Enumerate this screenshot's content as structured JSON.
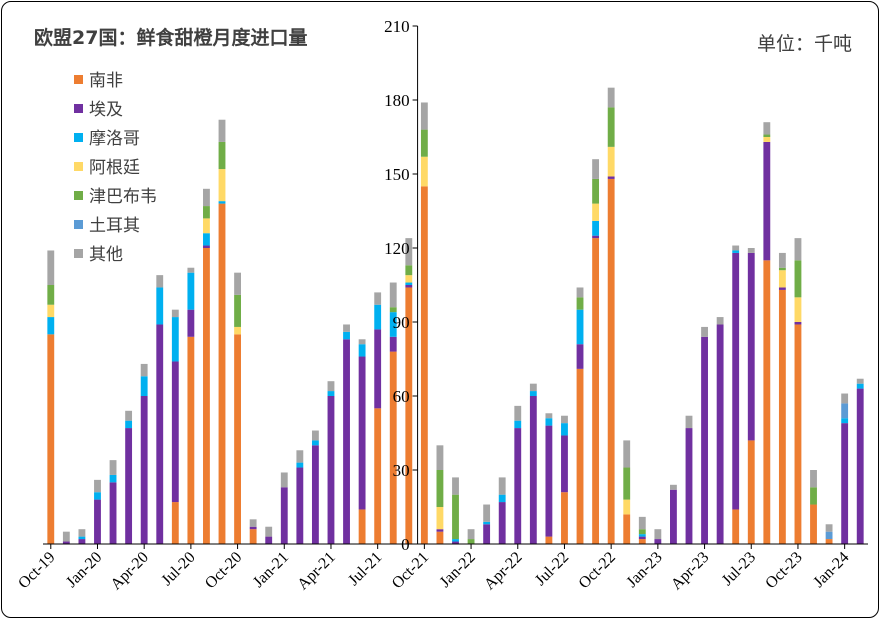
{
  "chart_data": {
    "type": "bar",
    "stacked": true,
    "title": "欧盟27国：鲜食甜橙月度进口量",
    "unit_label": "单位：千吨",
    "y_ticks": [
      0,
      30,
      60,
      90,
      120,
      150,
      180,
      210
    ],
    "ylim": [
      0,
      210
    ],
    "grid": false,
    "legend_position": "top-left",
    "x_tick_labels": [
      "Oct-19",
      "Jan-20",
      "Apr-20",
      "Jul-20",
      "Oct-20",
      "Jan-21",
      "Apr-21",
      "Jul-21",
      "Oct-21",
      "Jan-22",
      "Apr-22",
      "Jul-22",
      "Oct-22",
      "Jan-23",
      "Apr-23",
      "Jul-23",
      "Oct-23",
      "Jan-24"
    ],
    "categories": [
      "Oct-19",
      "Nov-19",
      "Dec-19",
      "Jan-20",
      "Feb-20",
      "Mar-20",
      "Apr-20",
      "May-20",
      "Jun-20",
      "Jul-20",
      "Aug-20",
      "Sep-20",
      "Oct-20",
      "Nov-20",
      "Dec-20",
      "Jan-21",
      "Feb-21",
      "Mar-21",
      "Apr-21",
      "May-21",
      "Jun-21",
      "Jul-21",
      "Aug-21",
      "Sep-21",
      "Oct-21",
      "Nov-21",
      "Dec-21",
      "Jan-22",
      "Feb-22",
      "Mar-22",
      "Apr-22",
      "May-22",
      "Jun-22",
      "Jul-22",
      "Aug-22",
      "Sep-22",
      "Oct-22",
      "Nov-22",
      "Dec-22",
      "Jan-23",
      "Feb-23",
      "Mar-23",
      "Apr-23",
      "May-23",
      "Jun-23",
      "Jul-23",
      "Aug-23",
      "Sep-23",
      "Oct-23",
      "Nov-23",
      "Dec-23",
      "Jan-24",
      "Feb-24"
    ],
    "series": [
      {
        "name": "南非",
        "color": "#ED7D31",
        "values": [
          85,
          0,
          0,
          0,
          0,
          0,
          0,
          0,
          17,
          84,
          120,
          138,
          85,
          6,
          0,
          0,
          0,
          0,
          0,
          0,
          14,
          55,
          78,
          104,
          145,
          5,
          0,
          0,
          0,
          0,
          0,
          0,
          3,
          21,
          71,
          124,
          148,
          12,
          2,
          0,
          0,
          0,
          0,
          0,
          14,
          42,
          115,
          103,
          89,
          16,
          2,
          0,
          0
        ]
      },
      {
        "name": "埃及",
        "color": "#7030A0",
        "values": [
          0,
          1,
          2,
          18,
          25,
          47,
          60,
          89,
          57,
          11,
          1,
          0,
          0,
          1,
          3,
          23,
          31,
          40,
          60,
          83,
          62,
          32,
          6,
          1,
          0,
          1,
          1,
          0,
          8,
          17,
          47,
          60,
          45,
          23,
          10,
          1,
          1,
          0,
          1,
          2,
          22,
          47,
          84,
          89,
          104,
          76,
          48,
          1,
          1,
          0,
          0,
          49,
          63
        ]
      },
      {
        "name": "摩洛哥",
        "color": "#00B0F0",
        "values": [
          7,
          0,
          1,
          3,
          3,
          3,
          8,
          15,
          18,
          15,
          5,
          1,
          0,
          0,
          0,
          0,
          2,
          2,
          2,
          3,
          5,
          10,
          10,
          1,
          0,
          0,
          1,
          0,
          1,
          3,
          3,
          2,
          3,
          5,
          14,
          6,
          0,
          0,
          1,
          0,
          0,
          0,
          0,
          0,
          1,
          0,
          0,
          0,
          0,
          0,
          0,
          2,
          2
        ]
      },
      {
        "name": "阿根廷",
        "color": "#FFD966",
        "values": [
          5,
          0,
          0,
          0,
          0,
          0,
          0,
          0,
          0,
          0,
          6,
          13,
          3,
          0,
          0,
          0,
          0,
          0,
          0,
          0,
          0,
          0,
          0,
          3,
          12,
          9,
          0,
          0,
          0,
          0,
          0,
          0,
          0,
          0,
          0,
          7,
          12,
          6,
          0,
          0,
          0,
          0,
          0,
          0,
          0,
          0,
          2,
          7,
          10,
          0,
          0,
          0,
          0
        ]
      },
      {
        "name": "津巴布韦",
        "color": "#70AD47",
        "values": [
          8,
          0,
          0,
          0,
          0,
          0,
          0,
          0,
          0,
          0,
          5,
          11,
          13,
          0,
          0,
          0,
          0,
          0,
          0,
          0,
          0,
          0,
          2,
          4,
          11,
          15,
          18,
          2,
          0,
          0,
          0,
          0,
          0,
          0,
          5,
          10,
          16,
          13,
          2,
          0,
          0,
          0,
          0,
          0,
          0,
          0,
          1,
          1,
          15,
          7,
          0,
          0,
          0
        ]
      },
      {
        "name": "土耳其",
        "color": "#5B9BD5",
        "values": [
          0,
          0,
          0,
          0,
          0,
          0,
          0,
          0,
          0,
          0,
          0,
          0,
          0,
          0,
          0,
          0,
          0,
          0,
          0,
          0,
          0,
          0,
          0,
          0,
          0,
          0,
          0,
          0,
          0,
          0,
          0,
          0,
          0,
          0,
          0,
          0,
          0,
          0,
          0,
          0,
          0,
          0,
          0,
          0,
          0,
          0,
          0,
          0,
          0,
          0,
          3,
          6,
          0
        ]
      },
      {
        "name": "其他",
        "color": "#A5A5A5",
        "values": [
          14,
          4,
          3,
          5,
          6,
          4,
          5,
          5,
          3,
          2,
          7,
          9,
          9,
          3,
          4,
          6,
          5,
          4,
          4,
          3,
          2,
          5,
          10,
          11,
          11,
          10,
          7,
          4,
          7,
          7,
          6,
          3,
          2,
          3,
          4,
          8,
          8,
          11,
          5,
          4,
          2,
          5,
          4,
          3,
          2,
          2,
          5,
          6,
          9,
          7,
          3,
          4,
          2
        ]
      }
    ]
  }
}
